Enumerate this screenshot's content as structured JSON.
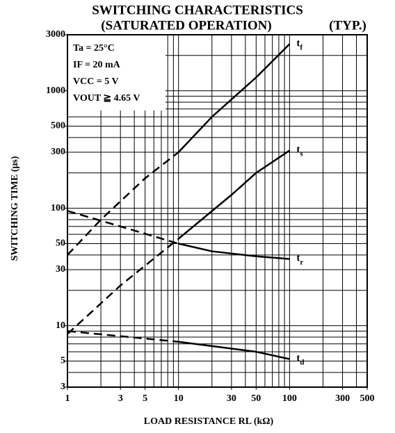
{
  "chart_data": {
    "type": "line",
    "title": "SWITCHING CHARACTERISTICS",
    "subtitle": "(SATURATED OPERATION)",
    "note": "(TYP.)",
    "x_label": "LOAD RESISTANCE  RL  (kΩ)",
    "y_label": "SWITCHING TIME  (μs)",
    "annotations": [
      "Ta = 25°C",
      "IF = 20 mA",
      "VCC = 5 V",
      "VOUT ≧ 4.65 V"
    ],
    "xlog": true,
    "ylog": true,
    "color": "#000000",
    "dashed_below_x": 10,
    "xlim": [
      1,
      500
    ],
    "ylim": [
      3,
      3000
    ],
    "xticks": [
      1,
      3,
      5,
      10,
      30,
      50,
      100,
      300,
      500
    ],
    "yticks": [
      3,
      5,
      10,
      30,
      50,
      100,
      300,
      500,
      1000,
      3000
    ],
    "xgrid": [
      1,
      2,
      3,
      4,
      5,
      6,
      7,
      8,
      9,
      10,
      20,
      30,
      40,
      50,
      60,
      70,
      80,
      90,
      100,
      200,
      300,
      400,
      500
    ],
    "ygrid": [
      3,
      4,
      5,
      6,
      7,
      8,
      9,
      10,
      20,
      30,
      40,
      50,
      60,
      70,
      80,
      90,
      100,
      200,
      300,
      400,
      500,
      600,
      700,
      800,
      900,
      1000,
      2000,
      3000
    ],
    "series": [
      {
        "name": "tf",
        "x": [
          1,
          2,
          5,
          10,
          20,
          50,
          100
        ],
        "values": [
          40,
          80,
          180,
          300,
          600,
          1300,
          2500
        ]
      },
      {
        "name": "ts",
        "x": [
          1,
          3,
          10,
          30,
          50,
          100
        ],
        "values": [
          8.5,
          22,
          55,
          130,
          200,
          310
        ]
      },
      {
        "name": "tr",
        "x": [
          1,
          3,
          10,
          20,
          50,
          100
        ],
        "values": [
          95,
          70,
          50,
          43,
          39,
          37
        ]
      },
      {
        "name": "td",
        "x": [
          1,
          10,
          50,
          100
        ],
        "values": [
          9,
          7.3,
          6,
          5.2
        ]
      }
    ]
  }
}
